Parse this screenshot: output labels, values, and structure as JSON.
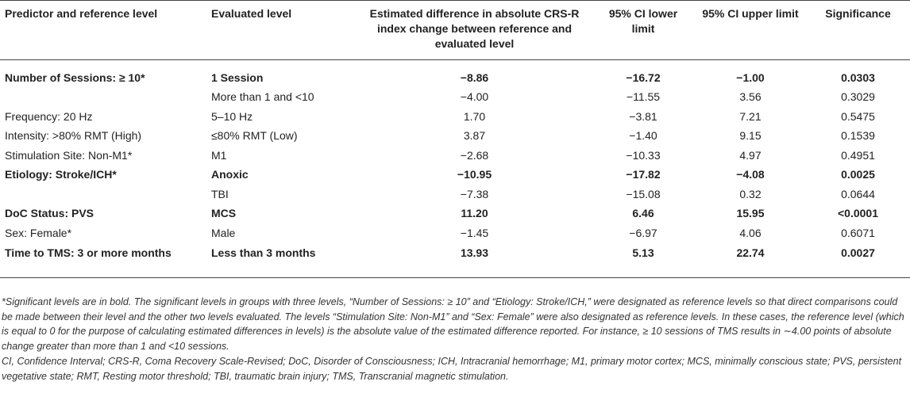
{
  "headers": {
    "predictor": "Predictor and reference level",
    "evaluated": "Evaluated level",
    "estimate": "Estimated difference in absolute CRS-R index change between reference and evaluated level",
    "ci_lower": "95% CI lower limit",
    "ci_upper": "95% CI upper limit",
    "significance": "Significance"
  },
  "rows": [
    {
      "predictor": "Number of Sessions: ≥ 10*",
      "evaluated": "1 Session",
      "estimate": "−8.86",
      "lower": "−16.72",
      "upper": "−1.00",
      "sig": "0.0303",
      "bold": true
    },
    {
      "predictor": "",
      "evaluated": "More than 1 and <10",
      "estimate": "−4.00",
      "lower": "−11.55",
      "upper": "3.56",
      "sig": "0.3029",
      "bold": false
    },
    {
      "predictor": "Frequency: 20 Hz",
      "evaluated": "5–10 Hz",
      "estimate": "1.70",
      "lower": "−3.81",
      "upper": "7.21",
      "sig": "0.5475",
      "bold": false
    },
    {
      "predictor": "Intensity: >80% RMT (High)",
      "evaluated": "≤80% RMT (Low)",
      "estimate": "3.87",
      "lower": "−1.40",
      "upper": "9.15",
      "sig": "0.1539",
      "bold": false
    },
    {
      "predictor": "Stimulation Site: Non-M1*",
      "evaluated": "M1",
      "estimate": "−2.68",
      "lower": "−10.33",
      "upper": "4.97",
      "sig": "0.4951",
      "bold": false
    },
    {
      "predictor": "Etiology: Stroke/ICH*",
      "evaluated": "Anoxic",
      "estimate": "−10.95",
      "lower": "−17.82",
      "upper": "−4.08",
      "sig": "0.0025",
      "bold": true
    },
    {
      "predictor": "",
      "evaluated": "TBI",
      "estimate": "−7.38",
      "lower": "−15.08",
      "upper": "0.32",
      "sig": "0.0644",
      "bold": false
    },
    {
      "predictor": "DoC Status: PVS",
      "evaluated": "MCS",
      "estimate": "11.20",
      "lower": "6.46",
      "upper": "15.95",
      "sig": "<0.0001",
      "bold": true
    },
    {
      "predictor": "Sex: Female*",
      "evaluated": "Male",
      "estimate": "−1.45",
      "lower": "−6.97",
      "upper": "4.06",
      "sig": "0.6071",
      "bold": false
    },
    {
      "predictor": "Time to TMS: 3 or more months",
      "evaluated": "Less than 3 months",
      "estimate": "13.93",
      "lower": "5.13",
      "upper": "22.74",
      "sig": "0.0027",
      "bold": true
    }
  ],
  "footnote": "*Significant levels are in bold. The significant levels in groups with three levels, “Number of Sessions: ≥ 10” and “Etiology: Stroke/ICH,” were designated as reference levels so that direct comparisons could be made between their level and the other two levels evaluated. The levels “Stimulation Site: Non-M1” and “Sex: Female” were also designated as reference levels. In these cases, the reference level (which is equal to 0 for the purpose of calculating estimated differences in levels) is the absolute value of the estimated difference reported. For instance, ≥ 10 sessions of TMS results in ∼4.00 points of absolute change greater than more than 1 and <10 sessions.",
  "abbreviations": "CI, Confidence Interval; CRS-R, Coma Recovery Scale-Revised; DoC, Disorder of Consciousness; ICH, Intracranial hemorrhage; M1, primary motor cortex; MCS, minimally conscious state; PVS, persistent vegetative state; RMT, Resting motor threshold; TBI, traumatic brain injury; TMS, Transcranial magnetic stimulation."
}
